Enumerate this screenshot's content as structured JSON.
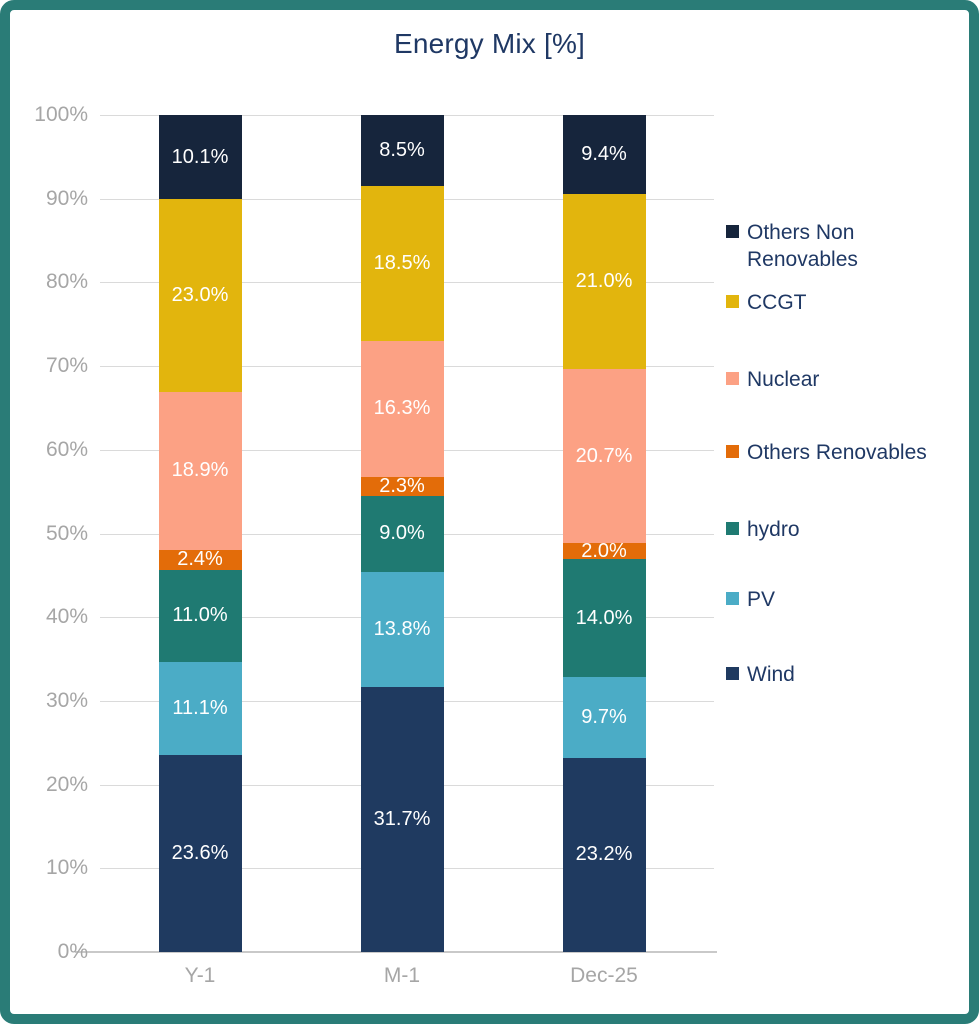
{
  "chart_data": {
    "type": "bar",
    "stacked": true,
    "title": "Energy Mix [%]",
    "categories": [
      "Y-1",
      "M-1",
      "Dec-25"
    ],
    "series": [
      {
        "name": "Wind",
        "color": "#1F3A60",
        "values": [
          23.6,
          31.7,
          23.2
        ],
        "labels": [
          "23.6%",
          "31.7%",
          "23.2%"
        ]
      },
      {
        "name": "PV",
        "color": "#4BACC6",
        "values": [
          11.1,
          13.8,
          9.7
        ],
        "labels": [
          "11.1%",
          "13.8%",
          "9.7%"
        ]
      },
      {
        "name": "hydro",
        "color": "#1F7A72",
        "values": [
          11.0,
          9.0,
          14.0
        ],
        "labels": [
          "11.0%",
          "9.0%",
          "14.0%"
        ]
      },
      {
        "name": "Others Renovables",
        "color": "#E36C09",
        "values": [
          2.4,
          2.3,
          2.0
        ],
        "labels": [
          "2.4%",
          "2.3%",
          "2.0%"
        ]
      },
      {
        "name": "Nuclear",
        "color": "#FCA184",
        "values": [
          18.9,
          16.3,
          20.7
        ],
        "labels": [
          "18.9%",
          "16.3%",
          "20.7%"
        ]
      },
      {
        "name": "CCGT",
        "color": "#E2B50D",
        "values": [
          23.0,
          18.5,
          21.0
        ],
        "labels": [
          "23.0%",
          "18.5%",
          "21.0%"
        ]
      },
      {
        "name": "Others Non Renovables",
        "color": "#16253C",
        "values": [
          10.1,
          8.5,
          9.4
        ],
        "labels": [
          "10.1%",
          "8.5%",
          "9.4%"
        ]
      }
    ],
    "y_axis": {
      "min": 0,
      "max": 100,
      "tick_step": 10,
      "tick_labels": [
        "0%",
        "10%",
        "20%",
        "30%",
        "40%",
        "50%",
        "60%",
        "70%",
        "80%",
        "90%",
        "100%"
      ]
    },
    "legend_order_top_to_bottom": [
      "Others Non Renovables",
      "CCGT",
      "Nuclear",
      "Others Renovables",
      "hydro",
      "PV",
      "Wind"
    ],
    "legend_position": "right",
    "grid": true,
    "data_labels": "inside-center, white"
  },
  "colors": {
    "frame_border": "#2A7C77",
    "title_text": "#1F3864",
    "legend_text": "#1F3864",
    "axis_text": "#A6A6A6",
    "gridline": "#DADADA",
    "axis_line": "#C9C9C9",
    "background": "#FFFFFF",
    "data_label_text": "#FFFFFF"
  }
}
